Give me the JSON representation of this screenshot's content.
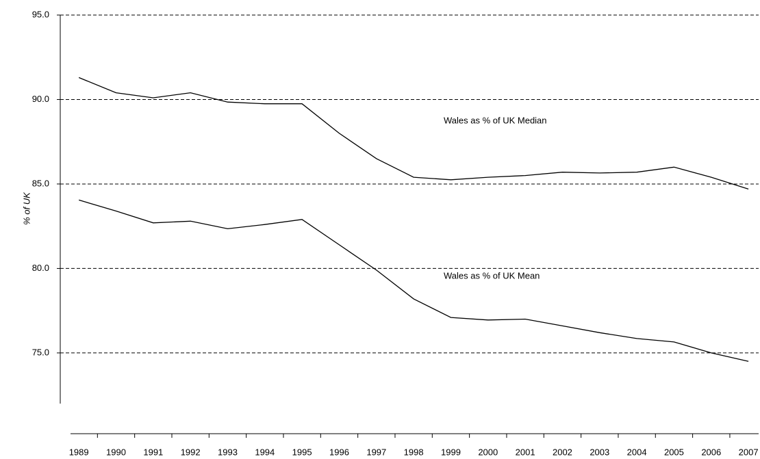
{
  "chart_data": {
    "type": "line",
    "y_label": "% of UK",
    "categories": [
      "1989",
      "1990",
      "1991",
      "1992",
      "1993",
      "1994",
      "1995",
      "1996",
      "1997",
      "1998",
      "1999",
      "2000",
      "2001",
      "2002",
      "2003",
      "2004",
      "2005",
      "2006",
      "2007"
    ],
    "series": [
      {
        "name": "Wales as % of UK Median",
        "color": "#000000",
        "values": [
          91.3,
          90.4,
          90.1,
          90.4,
          89.85,
          89.75,
          89.75,
          88.0,
          86.5,
          85.4,
          85.25,
          85.4,
          85.5,
          85.7,
          85.65,
          85.7,
          86.0,
          85.4,
          84.7
        ]
      },
      {
        "name": "Wales as % of UK Mean",
        "color": "#000000",
        "values": [
          84.05,
          83.4,
          82.7,
          82.8,
          82.35,
          82.6,
          82.9,
          81.4,
          79.9,
          78.2,
          77.1,
          76.95,
          77.0,
          76.6,
          76.2,
          75.85,
          75.65,
          75.0,
          74.5
        ]
      }
    ],
    "ylim": [
      72,
      95
    ],
    "yticks": [
      {
        "value": 75,
        "label": "75.0"
      },
      {
        "value": 80,
        "label": "80.0"
      },
      {
        "value": 85,
        "label": "85.0"
      },
      {
        "value": 90,
        "label": "90.0"
      },
      {
        "value": 95,
        "label": "95.0"
      }
    ],
    "grid": true
  }
}
